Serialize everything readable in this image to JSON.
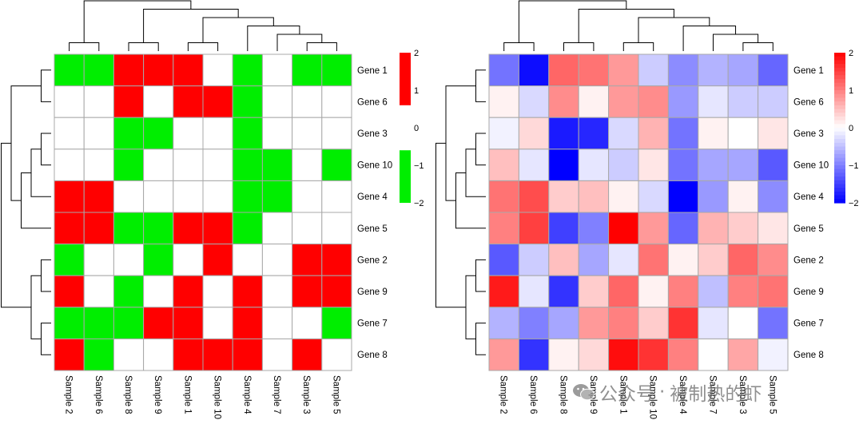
{
  "chart_data": [
    {
      "type": "heatmap",
      "name": "binary-heatmap",
      "rows": [
        "Gene 1",
        "Gene 6",
        "Gene 3",
        "Gene 10",
        "Gene 4",
        "Gene 5",
        "Gene 2",
        "Gene 9",
        "Gene 7",
        "Gene 8"
      ],
      "columns": [
        "Sample 2",
        "Sample 6",
        "Sample 8",
        "Sample 9",
        "Sample 1",
        "Sample 10",
        "Sample 4",
        "Sample 7",
        "Sample 3",
        "Sample 5"
      ],
      "values": [
        [
          -2,
          -2,
          2,
          2,
          2,
          0,
          -2,
          0,
          -2,
          -2
        ],
        [
          0,
          0,
          2,
          0,
          2,
          2,
          -2,
          0,
          0,
          0
        ],
        [
          0,
          0,
          -2,
          -2,
          0,
          0,
          -2,
          0,
          0,
          0
        ],
        [
          0,
          0,
          -2,
          0,
          0,
          0,
          -2,
          -2,
          0,
          -2
        ],
        [
          2,
          2,
          0,
          0,
          0,
          0,
          -2,
          -2,
          0,
          0
        ],
        [
          2,
          2,
          -2,
          -2,
          2,
          2,
          -2,
          0,
          0,
          0
        ],
        [
          -2,
          0,
          0,
          -2,
          0,
          2,
          0,
          0,
          2,
          2
        ],
        [
          2,
          0,
          -2,
          0,
          2,
          0,
          2,
          0,
          2,
          2
        ],
        [
          -2,
          -2,
          -2,
          2,
          2,
          0,
          2,
          0,
          0,
          -2
        ],
        [
          2,
          -2,
          0,
          0,
          2,
          2,
          2,
          0,
          2,
          0
        ]
      ],
      "color_low": "#00ee00",
      "color_mid": "#ffffff",
      "color_high": "#ff0000",
      "legend": {
        "ticks": [
          "2",
          "1",
          "0",
          "−1",
          "−2"
        ],
        "tick_values": [
          2,
          1,
          0,
          -1,
          -2
        ],
        "range": [
          -2,
          2
        ]
      }
    },
    {
      "type": "heatmap",
      "name": "continuous-heatmap",
      "rows": [
        "Gene 1",
        "Gene 6",
        "Gene 3",
        "Gene 10",
        "Gene 4",
        "Gene 5",
        "Gene 2",
        "Gene 9",
        "Gene 7",
        "Gene 8"
      ],
      "columns": [
        "Sample 2",
        "Sample 6",
        "Sample 8",
        "Sample 9",
        "Sample 1",
        "Sample 10",
        "Sample 4",
        "Sample 7",
        "Sample 3",
        "Sample 5"
      ],
      "values": [
        [
          -1.1,
          -1.9,
          1.2,
          1.1,
          0.8,
          -0.4,
          -0.9,
          -0.6,
          -0.7,
          -1.2
        ],
        [
          0.1,
          -0.3,
          0.9,
          0.1,
          0.8,
          0.9,
          -0.8,
          -0.2,
          -0.4,
          -0.4
        ],
        [
          -0.1,
          0.3,
          -1.8,
          -1.7,
          -0.3,
          0.6,
          -1.1,
          0.1,
          0.0,
          0.2
        ],
        [
          0.5,
          -0.2,
          -2.0,
          -0.2,
          -0.4,
          0.2,
          -1.1,
          -0.7,
          -0.7,
          -1.3
        ],
        [
          1.1,
          1.4,
          0.4,
          0.5,
          0.1,
          -0.3,
          -2.0,
          -0.8,
          0.1,
          -0.9
        ],
        [
          1.0,
          1.5,
          -1.5,
          -1.0,
          2.0,
          0.8,
          -1.2,
          0.6,
          0.4,
          0.2
        ],
        [
          -1.3,
          -0.4,
          0.5,
          -0.7,
          -0.2,
          1.1,
          0.1,
          0.4,
          1.2,
          0.9
        ],
        [
          1.8,
          -0.2,
          -1.6,
          0.4,
          1.2,
          0.1,
          1.0,
          -0.5,
          1.0,
          1.1
        ],
        [
          -0.6,
          -1.0,
          -0.7,
          0.8,
          1.0,
          0.4,
          1.6,
          -0.2,
          0.0,
          -1.1
        ],
        [
          0.8,
          -1.6,
          0.1,
          0.3,
          1.9,
          1.6,
          1.0,
          0.0,
          0.7,
          -0.1
        ]
      ],
      "color_low": "#0000ff",
      "color_mid": "#ffffff",
      "color_high": "#ff0000",
      "legend": {
        "ticks": [
          "2",
          "1",
          "0",
          "−1",
          "−2"
        ],
        "tick_values": [
          2,
          1,
          0,
          -1,
          -2
        ],
        "range": [
          -2,
          2
        ]
      }
    }
  ],
  "watermark": {
    "icon": "wechat-icon",
    "part1": "公众号",
    "separator": "·",
    "part2": "被制热的虾"
  }
}
